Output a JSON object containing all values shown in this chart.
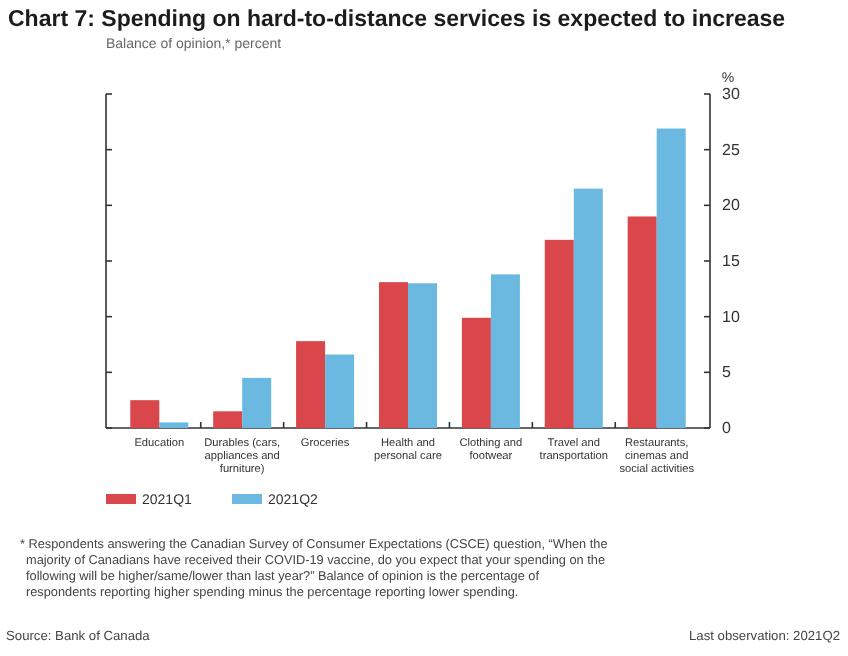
{
  "chart_data": {
    "type": "bar",
    "title": "Chart 7:  Spending on hard-to-distance services is expected to increase",
    "subtitle": "Balance of opinion,* percent",
    "ylabel": "%",
    "categories": [
      "Education",
      "Durables (cars, appliances and furniture)",
      "Groceries",
      "Health and personal care",
      "Clothing and footwear",
      "Travel and transportation",
      "Restaurants, cinemas and social activities"
    ],
    "series": [
      {
        "name": "2021Q1",
        "color": "#d9474a",
        "values": [
          2.5,
          1.5,
          7.8,
          13.1,
          9.9,
          16.9,
          19.0
        ]
      },
      {
        "name": "2021Q2",
        "color": "#6bb9e0",
        "values": [
          0.5,
          4.5,
          6.6,
          13.0,
          13.8,
          21.5,
          26.9
        ]
      }
    ],
    "ylim": [
      0,
      30
    ],
    "yticks": [
      0,
      5,
      10,
      15,
      20,
      25,
      30
    ],
    "legend": "bottom left",
    "annotations": [
      "* Respondents answering the Canadian Survey of Consumer Expectations (CSCE) question, “When the majority of Canadians have received their COVID-19 vaccine, do you expect that your spending on the following will be higher/same/lower than last year?” Balance of opinion is the percentage of respondents reporting higher spending minus the percentage reporting lower spending.",
      "Source: Bank of Canada",
      "Last observation: 2021Q2"
    ]
  }
}
